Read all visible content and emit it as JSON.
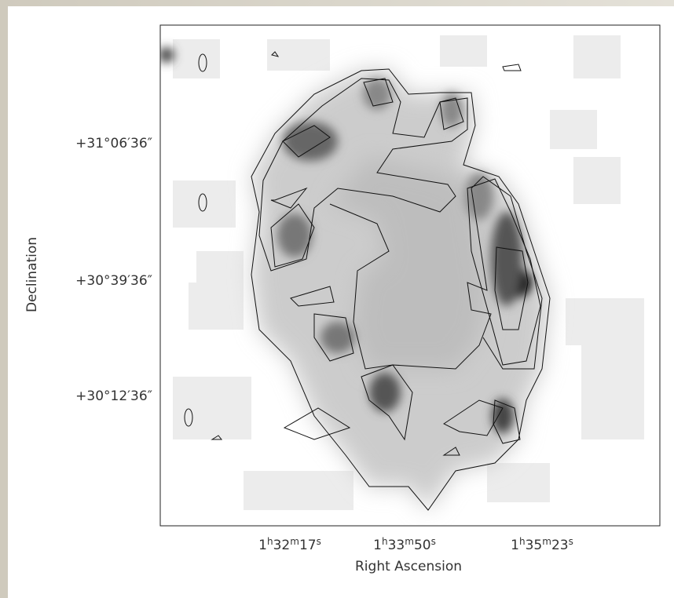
{
  "figure": {
    "x_axis": {
      "label": "Right Ascension",
      "ticks": [
        [
          "1",
          "h",
          "32",
          "m",
          "17",
          "s"
        ],
        [
          "1",
          "h",
          "33",
          "m",
          "50",
          "s"
        ],
        [
          "1",
          "h",
          "35",
          "m",
          "23",
          "s"
        ]
      ]
    },
    "y_axis": {
      "label": "Declination",
      "ticks": [
        "+31°06′36″",
        "+30°39′36″",
        "+30°12′36″"
      ]
    }
  }
}
